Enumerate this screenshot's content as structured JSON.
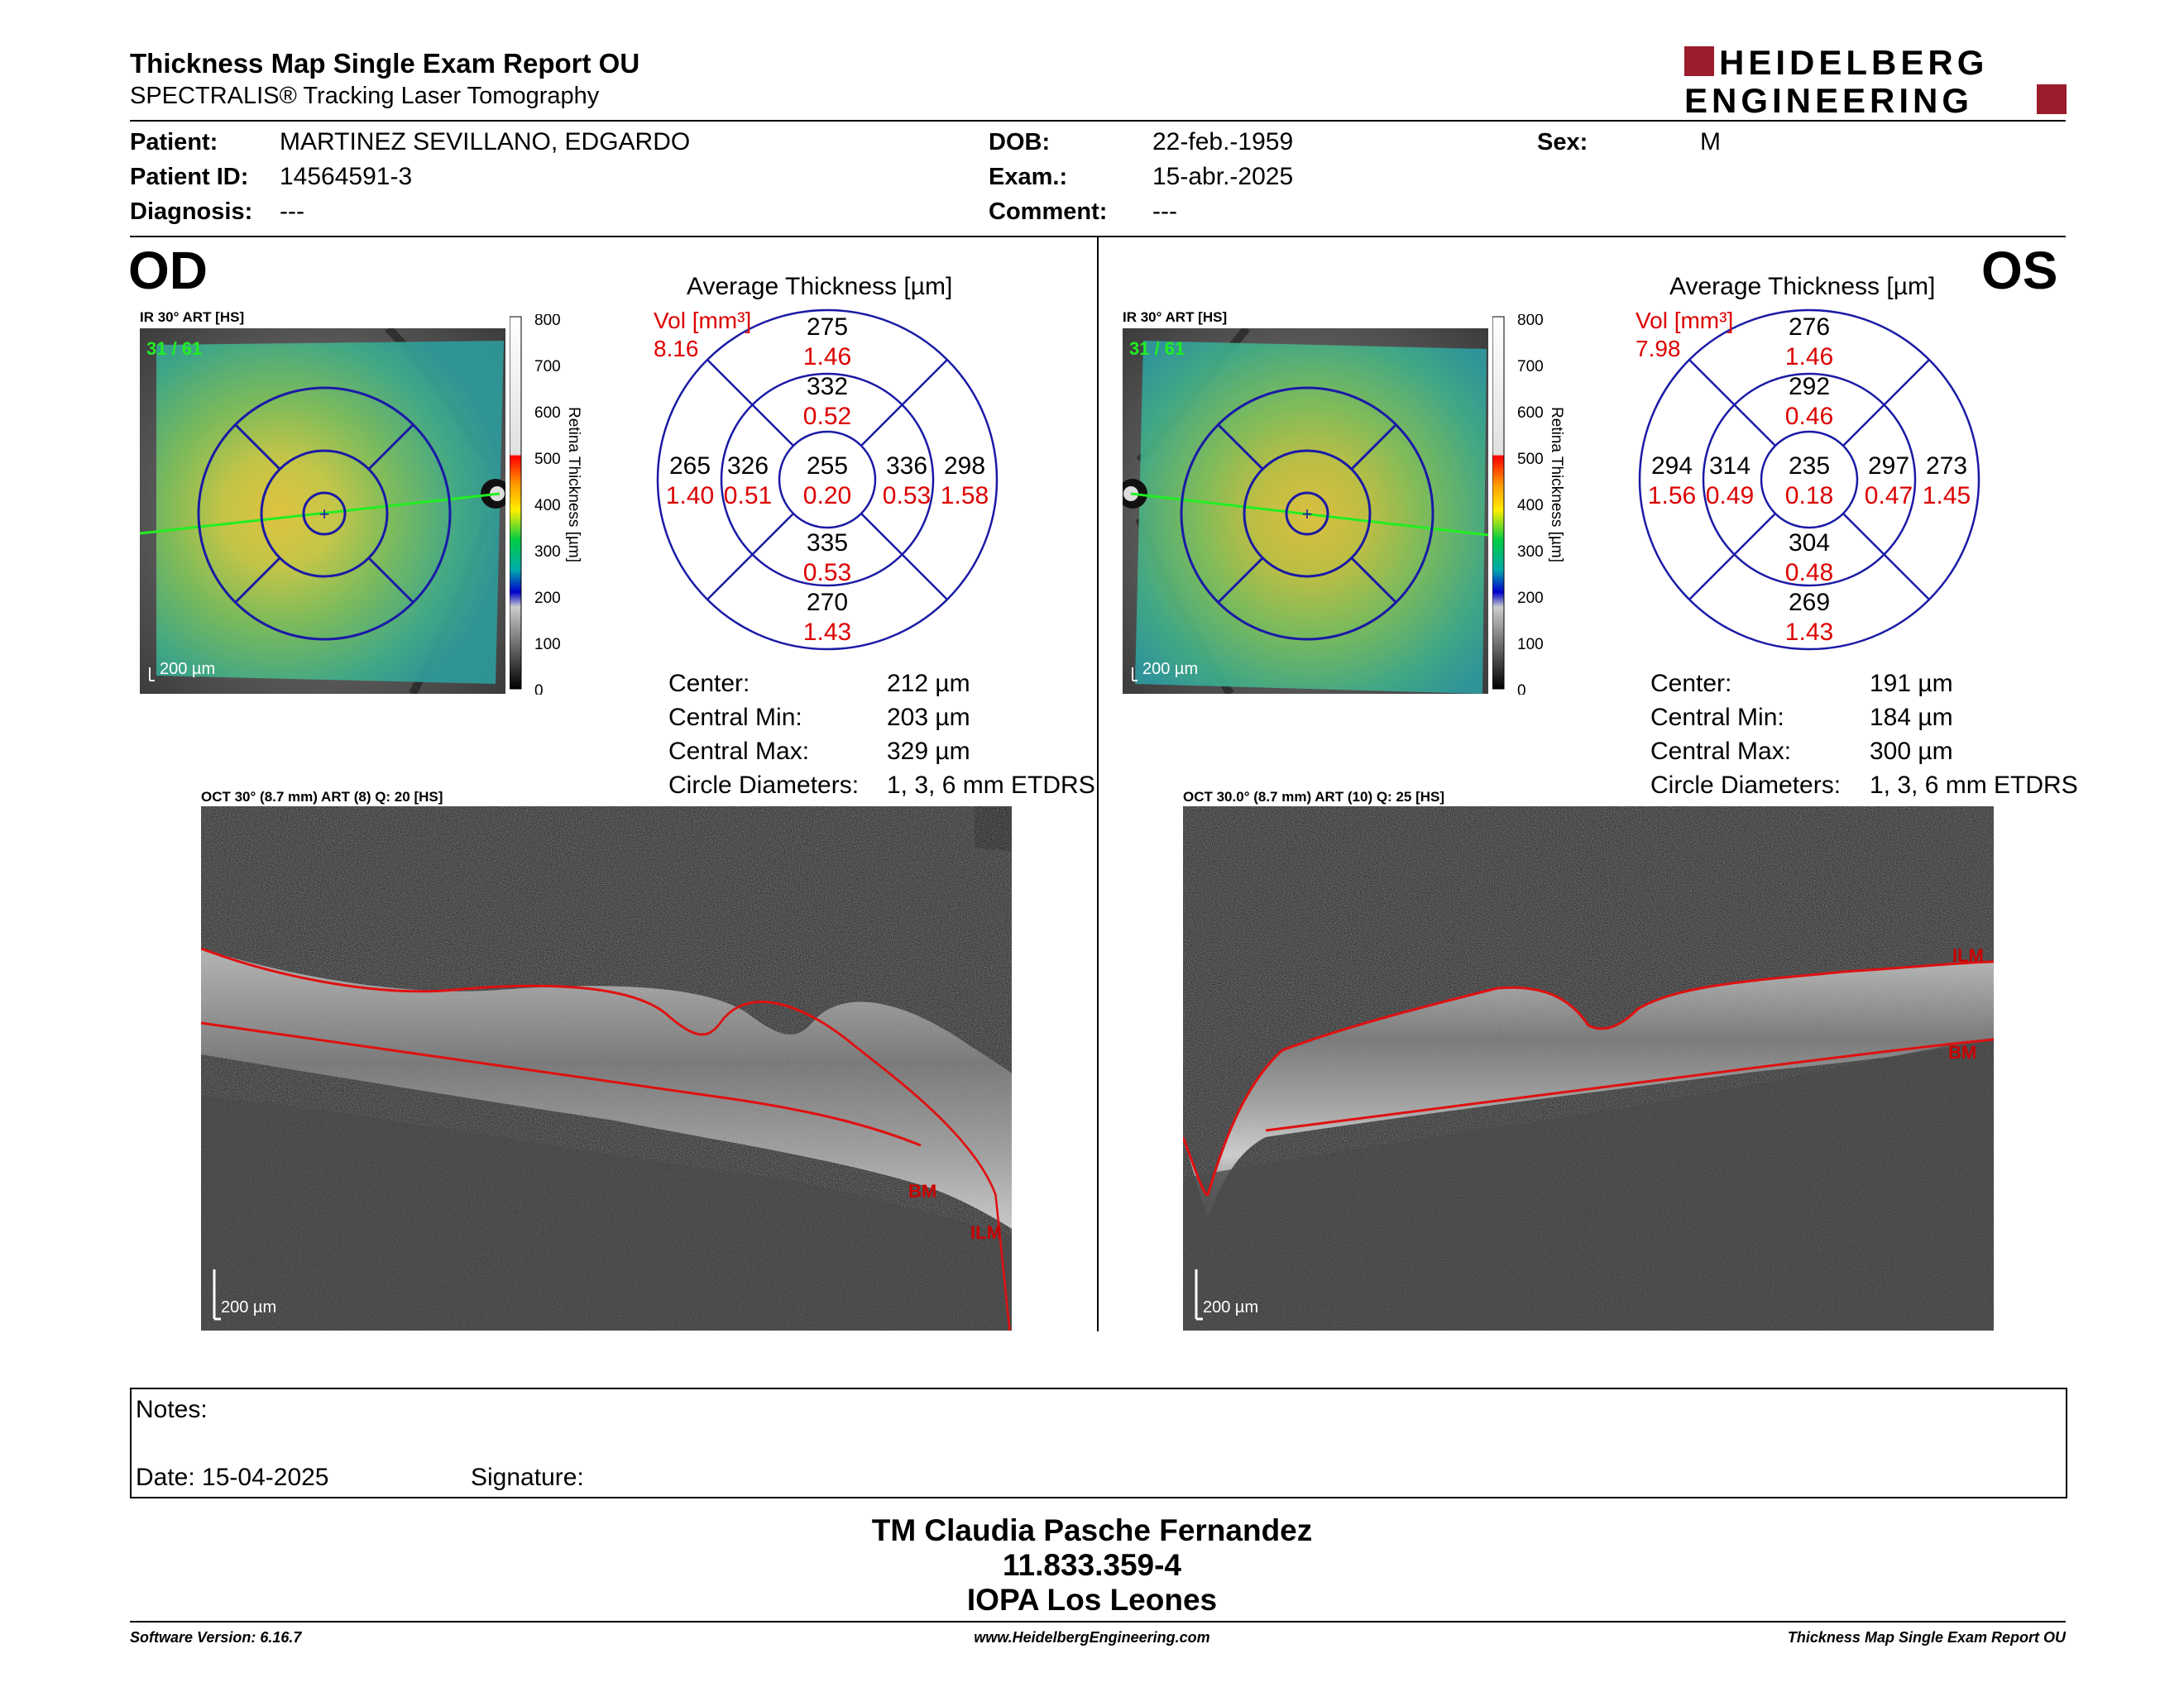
{
  "report": {
    "title": "Thickness Map Single Exam Report OU",
    "subtitle": "SPECTRALIS® Tracking Laser Tomography",
    "logo_line1": "HEIDELBERG",
    "logo_line2": "ENGINEERING"
  },
  "patient": {
    "patient_label": "Patient:",
    "patient_value": "MARTINEZ SEVILLANO, EDGARDO",
    "id_label": "Patient ID:",
    "id_value": "14564591-3",
    "diag_label": "Diagnosis:",
    "diag_value": "---",
    "dob_label": "DOB:",
    "dob_value": "22-feb.-1959",
    "exam_label": "Exam.:",
    "exam_value": "15-abr.-2025",
    "comment_label": "Comment:",
    "comment_value": "---",
    "sex_label": "Sex:",
    "sex_value": "M"
  },
  "od": {
    "eye": "OD",
    "ir_label": "IR 30° ART [HS]",
    "frame_counter": "31 / 61",
    "scale": "200 µm",
    "avg_title": "Average Thickness [µm]",
    "vol_label": "Vol [mm³]",
    "vol_value": "8.16",
    "etdrs": {
      "outer_top": "275",
      "outer_top_vol": "1.46",
      "inner_top": "332",
      "inner_top_vol": "0.52",
      "outer_left": "265",
      "outer_left_vol": "1.40",
      "inner_left": "326",
      "inner_left_vol": "0.51",
      "center": "255",
      "center_vol": "0.20",
      "inner_right": "336",
      "inner_right_vol": "0.53",
      "outer_right": "298",
      "outer_right_vol": "1.58",
      "inner_bottom": "335",
      "inner_bottom_vol": "0.53",
      "outer_bottom": "270",
      "outer_bottom_vol": "1.43"
    },
    "stats": {
      "center_label": "Center:",
      "center_value": "212 µm",
      "min_label": "Central Min:",
      "min_value": "203 µm",
      "max_label": "Central Max:",
      "max_value": "329 µm",
      "diam_label": "Circle Diameters:",
      "diam_value": "1, 3, 6 mm ETDRS"
    },
    "oct_label": "OCT 30° (8.7 mm) ART (8) Q: 20 [HS]",
    "oct_scale": "200 µm",
    "ilm": "ILM",
    "bm": "BM"
  },
  "os": {
    "eye": "OS",
    "ir_label": "IR 30° ART [HS]",
    "frame_counter": "31 / 61",
    "scale": "200 µm",
    "avg_title": "Average Thickness [µm]",
    "vol_label": "Vol [mm³]",
    "vol_value": "7.98",
    "etdrs": {
      "outer_top": "276",
      "outer_top_vol": "1.46",
      "inner_top": "292",
      "inner_top_vol": "0.46",
      "outer_left": "294",
      "outer_left_vol": "1.56",
      "inner_left": "314",
      "inner_left_vol": "0.49",
      "center": "235",
      "center_vol": "0.18",
      "inner_right": "297",
      "inner_right_vol": "0.47",
      "outer_right": "273",
      "outer_right_vol": "1.45",
      "inner_bottom": "304",
      "inner_bottom_vol": "0.48",
      "outer_bottom": "269",
      "outer_bottom_vol": "1.43"
    },
    "stats": {
      "center_label": "Center:",
      "center_value": "191 µm",
      "min_label": "Central Min:",
      "min_value": "184 µm",
      "max_label": "Central Max:",
      "max_value": "300 µm",
      "diam_label": "Circle Diameters:",
      "diam_value": "1, 3, 6 mm ETDRS"
    },
    "oct_label": "OCT 30.0° (8.7 mm) ART (10) Q: 25 [HS]",
    "oct_scale": "200 µm",
    "ilm": "ILM",
    "bm": "BM"
  },
  "colorbar": {
    "ticks": [
      "800",
      "700",
      "600",
      "500",
      "400",
      "300",
      "200",
      "100",
      "0"
    ],
    "axis_label": "Retina Thickness [µm]"
  },
  "notes": {
    "notes_label": "Notes:",
    "date_label": "Date: 15-04-2025",
    "signature_label": "Signature:"
  },
  "signer": {
    "name": "TM Claudia Pasche Fernandez",
    "id": "11.833.359-4",
    "clinic": "IOPA Los Leones"
  },
  "footer": {
    "software": "Software Version: 6.16.7",
    "website": "www.HeidelbergEngineering.com",
    "report": "Thickness Map Single Exam Report OU"
  },
  "colors": {
    "accent_red": "#9b1c2c",
    "etdrs_blue": "#1a1aa6",
    "volume_red": "#dd0000"
  }
}
